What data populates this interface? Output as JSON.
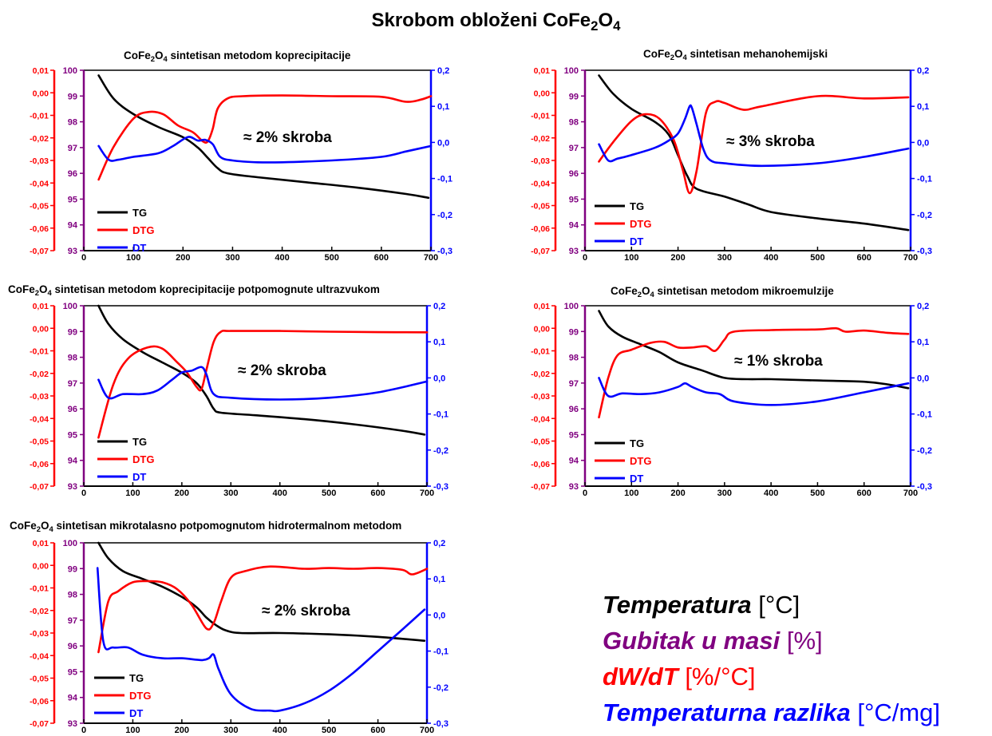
{
  "main_title": {
    "prefix": "Skrobom obloženi CoFe",
    "s1": "2",
    "mid": "O",
    "s2": "4"
  },
  "colors": {
    "TG": "#000000",
    "DTG": "#ff0000",
    "DT": "#0000ff",
    "tg_axis": "#800080",
    "dtg_axis": "#ff0000",
    "dt_axis": "#0000ff"
  },
  "legend_block": [
    {
      "label": "Temperatura",
      "unit": "[°C]",
      "color": "#000000"
    },
    {
      "label": "Gubitak u masi",
      "unit": "[%]",
      "color": "#800080"
    },
    {
      "label": "dW/dT",
      "unit": "[%/°C]",
      "color": "#ff0000"
    },
    {
      "label": "Temperaturna razlika",
      "unit": "[°C/mg]",
      "color": "#0000ff"
    }
  ],
  "chart_data": [
    {
      "type": "line",
      "title": "CoFe2O4 sintetisan metodom  koprecipitacije",
      "title_parts": {
        "pre": "CoFe",
        "s1": "2",
        "mid": "O",
        "s2": "4",
        "post": " sintetisan metodom  koprecipitacije"
      },
      "annotation": "≈ 2% skroba",
      "x_ticks": [
        "0",
        "100",
        "200",
        "300",
        "400",
        "500",
        "600",
        "700"
      ],
      "tg_ticks": [
        "93",
        "94",
        "95",
        "96",
        "97",
        "98",
        "99",
        "100"
      ],
      "dtg_ticks": [
        "-0,07",
        "-0,06",
        "-0,05",
        "-0,04",
        "-0,03",
        "-0,02",
        "-0,01",
        "0,00",
        "0,01"
      ],
      "dt_ticks": [
        "-0,3",
        "-0,2",
        "-0,1",
        "0,0",
        "0,1",
        "0,2"
      ],
      "xlim": [
        0,
        700
      ],
      "tg_lim": [
        93,
        100
      ],
      "dtg_lim": [
        -0.07,
        0.01
      ],
      "dt_lim": [
        -0.3,
        0.2
      ],
      "series": [
        {
          "name": "TG",
          "x": [
            30,
            60,
            100,
            150,
            200,
            230,
            250,
            270,
            290,
            350,
            450,
            550,
            650,
            695
          ],
          "y": [
            99.8,
            98.9,
            98.3,
            97.8,
            97.4,
            97.0,
            96.6,
            96.2,
            96.0,
            95.85,
            95.65,
            95.45,
            95.2,
            95.05
          ]
        },
        {
          "name": "DTG",
          "x": [
            30,
            60,
            100,
            130,
            160,
            190,
            220,
            240,
            250,
            260,
            270,
            290,
            320,
            400,
            500,
            600,
            650,
            680,
            700
          ],
          "y": [
            -0.0385,
            -0.024,
            -0.0115,
            -0.0085,
            -0.0095,
            -0.0145,
            -0.0175,
            -0.0215,
            -0.0215,
            -0.016,
            -0.007,
            -0.0025,
            -0.0015,
            -0.0012,
            -0.0015,
            -0.0018,
            -0.004,
            -0.003,
            -0.0015
          ]
        },
        {
          "name": "DT",
          "x": [
            30,
            50,
            70,
            100,
            150,
            180,
            210,
            230,
            245,
            260,
            275,
            300,
            350,
            400,
            500,
            600,
            650,
            700
          ],
          "y": [
            -0.01,
            -0.048,
            -0.048,
            -0.04,
            -0.03,
            -0.01,
            0.015,
            0.005,
            0.007,
            -0.005,
            -0.04,
            -0.05,
            -0.055,
            -0.055,
            -0.05,
            -0.04,
            -0.025,
            -0.01
          ]
        }
      ]
    },
    {
      "type": "line",
      "title": "CoFe2O4 sintetisan mehanohemijski",
      "title_parts": {
        "pre": "CoFe",
        "s1": "2",
        "mid": "O",
        "s2": "4",
        "post": " sintetisan mehanohemijski"
      },
      "annotation": "≈ 3% skroba",
      "x_ticks": [
        "0",
        "100",
        "200",
        "300",
        "400",
        "500",
        "600",
        "700"
      ],
      "tg_ticks": [
        "93",
        "94",
        "95",
        "96",
        "97",
        "98",
        "99",
        "100"
      ],
      "dtg_ticks": [
        "-0,07",
        "-0,06",
        "-0,05",
        "-0,04",
        "-0,03",
        "-0,02",
        "-0,01",
        "0,00",
        "0,01"
      ],
      "dt_ticks": [
        "-0,3",
        "-0,2",
        "-0,1",
        "0,0",
        "0,1",
        "0,2"
      ],
      "xlim": [
        0,
        700
      ],
      "tg_lim": [
        93,
        100
      ],
      "dtg_lim": [
        -0.07,
        0.01
      ],
      "dt_lim": [
        -0.3,
        0.2
      ],
      "series": [
        {
          "name": "TG",
          "x": [
            30,
            60,
            100,
            150,
            180,
            200,
            220,
            240,
            300,
            350,
            400,
            500,
            600,
            695
          ],
          "y": [
            99.8,
            99.1,
            98.5,
            98.0,
            97.5,
            96.7,
            95.9,
            95.4,
            95.1,
            94.8,
            94.5,
            94.25,
            94.05,
            93.8
          ]
        },
        {
          "name": "DTG",
          "x": [
            30,
            60,
            100,
            130,
            160,
            190,
            210,
            225,
            240,
            260,
            280,
            300,
            340,
            380,
            500,
            600,
            695
          ],
          "y": [
            -0.0305,
            -0.022,
            -0.0125,
            -0.0095,
            -0.0115,
            -0.0205,
            -0.034,
            -0.0445,
            -0.0345,
            -0.009,
            -0.004,
            -0.0045,
            -0.0075,
            -0.006,
            -0.0015,
            -0.0025,
            -0.002
          ]
        },
        {
          "name": "DT",
          "x": [
            30,
            50,
            70,
            100,
            150,
            180,
            200,
            215,
            225,
            230,
            240,
            255,
            270,
            300,
            380,
            500,
            600,
            695
          ],
          "y": [
            -0.005,
            -0.05,
            -0.045,
            -0.035,
            -0.015,
            0.005,
            0.025,
            0.065,
            0.1,
            0.095,
            0.05,
            -0.02,
            -0.05,
            -0.058,
            -0.065,
            -0.058,
            -0.04,
            -0.017
          ]
        }
      ]
    },
    {
      "type": "line",
      "title": "CoFe2O4 sintetisan metodom koprecipitacije potpomognute ultrazvukom",
      "title_parts": {
        "pre": "CoFe",
        "s1": "2",
        "mid": "O",
        "s2": "4",
        "post": " sintetisan metodom koprecipitacije potpomognute ultrazvukom"
      },
      "annotation": "≈ 2% skroba",
      "x_ticks": [
        "0",
        "100",
        "200",
        "300",
        "400",
        "500",
        "600",
        "700"
      ],
      "tg_ticks": [
        "93",
        "94",
        "95",
        "96",
        "97",
        "98",
        "99",
        "100"
      ],
      "dtg_ticks": [
        "-0,07",
        "-0,06",
        "-0,05",
        "-0,04",
        "-0,03",
        "-0,02",
        "-0,01",
        "0,00",
        "0,01"
      ],
      "dt_ticks": [
        "-0,3",
        "-0,2",
        "-0,1",
        "0,0",
        "0,1",
        "0,2"
      ],
      "xlim": [
        0,
        700
      ],
      "tg_lim": [
        93,
        100
      ],
      "dtg_lim": [
        -0.07,
        0.01
      ],
      "dt_lim": [
        -0.3,
        0.2
      ],
      "series": [
        {
          "name": "TG",
          "x": [
            30,
            50,
            80,
            120,
            160,
            200,
            230,
            250,
            265,
            280,
            350,
            450,
            550,
            650,
            695
          ],
          "y": [
            100,
            99.3,
            98.7,
            98.2,
            97.8,
            97.4,
            97.0,
            96.5,
            96.0,
            95.85,
            95.75,
            95.6,
            95.4,
            95.15,
            95.0
          ]
        },
        {
          "name": "DTG",
          "x": [
            30,
            60,
            90,
            130,
            160,
            190,
            210,
            230,
            240,
            250,
            265,
            280,
            300,
            400,
            500,
            600,
            700
          ],
          "y": [
            -0.0485,
            -0.025,
            -0.0135,
            -0.0085,
            -0.009,
            -0.015,
            -0.0195,
            -0.026,
            -0.027,
            -0.0185,
            -0.006,
            -0.0015,
            -0.0012,
            -0.0012,
            -0.0015,
            -0.0017,
            -0.0018
          ]
        },
        {
          "name": "DT",
          "x": [
            30,
            50,
            80,
            120,
            150,
            180,
            200,
            220,
            240,
            250,
            265,
            300,
            400,
            500,
            600,
            700
          ],
          "y": [
            -0.005,
            -0.055,
            -0.045,
            -0.045,
            -0.035,
            -0.005,
            0.015,
            0.02,
            0.03,
            0.01,
            -0.045,
            -0.055,
            -0.06,
            -0.055,
            -0.04,
            -0.01
          ]
        }
      ]
    },
    {
      "type": "line",
      "title": "CoFe2O4 sintetisan metodom mikroemulzije",
      "title_parts": {
        "pre": "CoFe",
        "s1": "2",
        "mid": "O",
        "s2": "4",
        "post": " sintetisan metodom mikroemulzije"
      },
      "annotation": "≈ 1% skroba",
      "x_ticks": [
        "0",
        "100",
        "200",
        "300",
        "400",
        "500",
        "600",
        "700"
      ],
      "tg_ticks": [
        "93",
        "94",
        "95",
        "96",
        "97",
        "98",
        "99",
        "100"
      ],
      "dtg_ticks": [
        "-0,07",
        "-0,06",
        "-0,05",
        "-0,04",
        "-0,03",
        "-0,02",
        "-0,01",
        "0,00",
        "0,01"
      ],
      "dt_ticks": [
        "-0,3",
        "-0,2",
        "-0,1",
        "0,0",
        "0,1",
        "0,2"
      ],
      "xlim": [
        0,
        700
      ],
      "tg_lim": [
        93,
        100
      ],
      "dtg_lim": [
        -0.07,
        0.01
      ],
      "dt_lim": [
        -0.3,
        0.2
      ],
      "series": [
        {
          "name": "TG",
          "x": [
            30,
            50,
            80,
            120,
            160,
            200,
            250,
            300,
            350,
            400,
            500,
            600,
            650,
            695
          ],
          "y": [
            99.8,
            99.2,
            98.8,
            98.5,
            98.2,
            97.8,
            97.5,
            97.2,
            97.15,
            97.15,
            97.1,
            97.05,
            96.95,
            96.8
          ]
        },
        {
          "name": "DTG",
          "x": [
            30,
            50,
            70,
            100,
            140,
            170,
            200,
            230,
            260,
            280,
            300,
            320,
            400,
            500,
            540,
            560,
            600,
            650,
            695
          ],
          "y": [
            -0.0395,
            -0.022,
            -0.012,
            -0.0095,
            -0.0065,
            -0.006,
            -0.0085,
            -0.0085,
            -0.008,
            -0.01,
            -0.005,
            -0.0015,
            -0.0008,
            -0.0005,
            0.0,
            -0.0015,
            -0.001,
            -0.002,
            -0.0025
          ]
        },
        {
          "name": "DT",
          "x": [
            30,
            50,
            80,
            120,
            160,
            200,
            215,
            230,
            260,
            290,
            320,
            400,
            500,
            600,
            695
          ],
          "y": [
            -0.0001,
            -0.05,
            -0.043,
            -0.045,
            -0.04,
            -0.025,
            -0.015,
            -0.025,
            -0.04,
            -0.045,
            -0.065,
            -0.075,
            -0.065,
            -0.04,
            -0.015
          ]
        }
      ]
    },
    {
      "type": "line",
      "title": "CoFe2O4 sintetisan mikrotalasno potpomognutom hidrotermalnom metodom",
      "title_parts": {
        "pre": "CoFe",
        "s1": "2",
        "mid": "O",
        "s2": "4",
        "post": " sintetisan mikrotalasno potpomognutom hidrotermalnom metodom"
      },
      "annotation": "≈ 2% skroba",
      "x_ticks": [
        "0",
        "100",
        "200",
        "300",
        "400",
        "500",
        "600",
        "700"
      ],
      "tg_ticks": [
        "93",
        "94",
        "95",
        "96",
        "97",
        "98",
        "99",
        "100"
      ],
      "dtg_ticks": [
        "-0,07",
        "-0,06",
        "-0,05",
        "-0,04",
        "-0,03",
        "-0,02",
        "-0,01",
        "0,00",
        "0,01"
      ],
      "dt_ticks": [
        "-0,3",
        "-0,2",
        "-0,1",
        "0,0",
        "0,1",
        "0,2"
      ],
      "xlim": [
        0,
        700
      ],
      "tg_lim": [
        93,
        100
      ],
      "dtg_lim": [
        -0.07,
        0.01
      ],
      "dt_lim": [
        -0.3,
        0.2
      ],
      "series": [
        {
          "name": "TG",
          "x": [
            30,
            50,
            80,
            120,
            160,
            200,
            230,
            250,
            270,
            290,
            320,
            400,
            500,
            600,
            695
          ],
          "y": [
            100,
            99.4,
            98.9,
            98.6,
            98.3,
            97.9,
            97.5,
            97.1,
            96.8,
            96.6,
            96.5,
            96.5,
            96.45,
            96.35,
            96.2
          ]
        },
        {
          "name": "DTG",
          "x": [
            30,
            50,
            70,
            100,
            130,
            160,
            190,
            220,
            250,
            265,
            280,
            300,
            330,
            380,
            450,
            500,
            550,
            600,
            650,
            670,
            700
          ],
          "y": [
            -0.0385,
            -0.016,
            -0.0115,
            -0.0075,
            -0.007,
            -0.0075,
            -0.0105,
            -0.0175,
            -0.028,
            -0.0255,
            -0.016,
            -0.0055,
            -0.0025,
            -0.0005,
            -0.0015,
            -0.0012,
            -0.0015,
            -0.0012,
            -0.002,
            -0.004,
            -0.0015
          ]
        },
        {
          "name": "DT",
          "x": [
            28,
            40,
            60,
            90,
            120,
            160,
            200,
            240,
            255,
            265,
            275,
            300,
            340,
            380,
            400,
            450,
            500,
            550,
            600,
            650,
            695
          ],
          "y": [
            0.13,
            -0.075,
            -0.09,
            -0.09,
            -0.11,
            -0.12,
            -0.12,
            -0.125,
            -0.12,
            -0.11,
            -0.15,
            -0.22,
            -0.26,
            -0.265,
            -0.265,
            -0.245,
            -0.21,
            -0.16,
            -0.1,
            -0.04,
            0.015
          ]
        }
      ]
    }
  ]
}
